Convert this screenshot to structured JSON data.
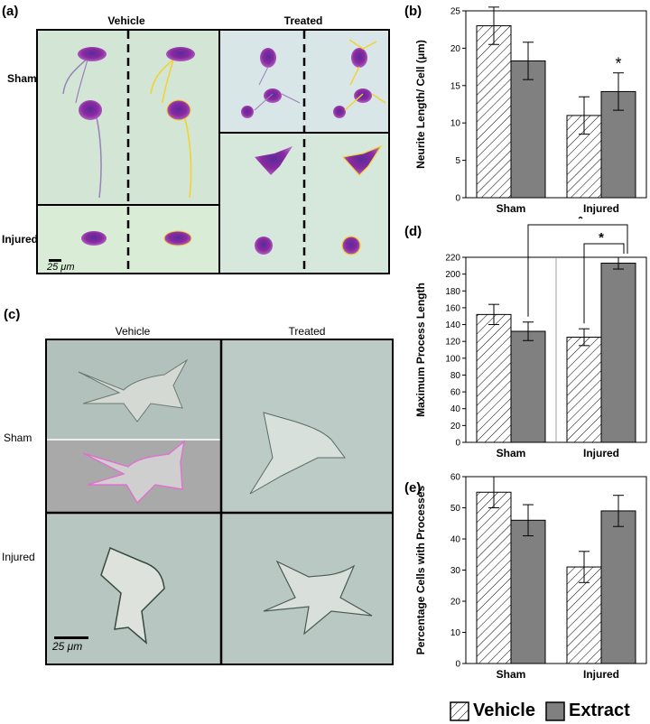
{
  "panel_labels": {
    "a": "(a)",
    "b": "(b)",
    "c": "(c)",
    "d": "(d)",
    "e": "(e)"
  },
  "panel_a": {
    "col_headers": [
      "Vehicle",
      "Treated"
    ],
    "row_labels": [
      "Sham",
      "Injured"
    ],
    "scale_bar": "25 μm"
  },
  "panel_c": {
    "col_headers": [
      "Vehicle",
      "Treated"
    ],
    "row_labels": [
      "Sham",
      "Injured"
    ],
    "scale_bar": "25 μm"
  },
  "colors": {
    "extract": "#808080",
    "vehicle_hatch": "#000000",
    "neuron": "#7a2aa0",
    "trace": "#f2d22e",
    "trace_magenta": "#e070d0",
    "background_a": "#d6e8d8",
    "background_c": "#b8c8c4"
  },
  "legend": {
    "vehicle": "Vehicle",
    "extract": "Extract"
  },
  "chart_data": [
    {
      "id": "b",
      "type": "bar",
      "categories": [
        "Sham",
        "Injured"
      ],
      "series": [
        {
          "name": "Vehicle",
          "pattern": "hatch",
          "values": [
            23.0,
            11.0
          ],
          "errors": [
            2.5,
            2.5
          ]
        },
        {
          "name": "Extract",
          "pattern": "solid",
          "values": [
            18.3,
            14.2
          ],
          "errors": [
            2.5,
            2.5
          ]
        }
      ],
      "ylabel": "Neurite Length/ Cell (μm)",
      "ylim": [
        0,
        25
      ],
      "yticks": [
        0,
        5,
        10,
        15,
        20,
        25
      ],
      "annotations": [
        {
          "text": "*",
          "category": "Injured",
          "series": "Extract"
        }
      ]
    },
    {
      "id": "d",
      "type": "bar",
      "categories": [
        "Sham",
        "Injured"
      ],
      "series": [
        {
          "name": "Vehicle",
          "pattern": "hatch",
          "values": [
            152,
            125
          ],
          "errors": [
            12,
            10
          ]
        },
        {
          "name": "Extract",
          "pattern": "solid",
          "values": [
            132,
            213
          ],
          "errors": [
            11,
            7
          ]
        }
      ],
      "ylabel": "Maximum Process Length",
      "ylim": [
        0,
        220
      ],
      "yticks": [
        0,
        20,
        40,
        60,
        80,
        100,
        120,
        140,
        160,
        180,
        200,
        220
      ],
      "annotations": [
        {
          "text": "*",
          "from": "Sham Extract",
          "to": "Injured Extract"
        },
        {
          "text": "*",
          "from": "Injured Vehicle",
          "to": "Injured Extract"
        }
      ]
    },
    {
      "id": "e",
      "type": "bar",
      "categories": [
        "Sham",
        "Injured"
      ],
      "series": [
        {
          "name": "Vehicle",
          "pattern": "hatch",
          "values": [
            55,
            31
          ],
          "errors": [
            5,
            5
          ]
        },
        {
          "name": "Extract",
          "pattern": "solid",
          "values": [
            46,
            49
          ],
          "errors": [
            5,
            5
          ]
        }
      ],
      "ylabel": "Percentage Cells with Processes",
      "ylim": [
        0,
        60
      ],
      "yticks": [
        0,
        10,
        20,
        30,
        40,
        50,
        60
      ],
      "annotations": []
    }
  ]
}
